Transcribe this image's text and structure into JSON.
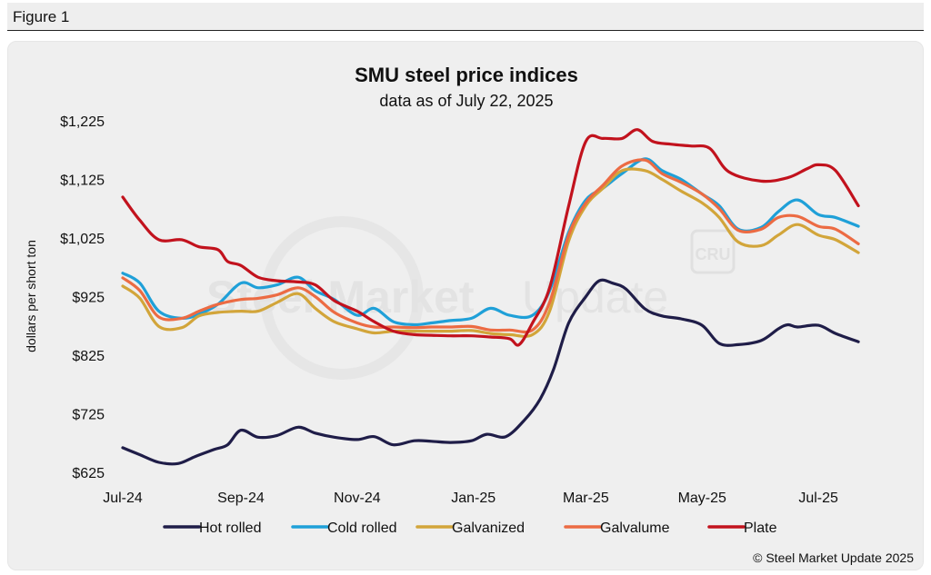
{
  "figure_label": "Figure 1",
  "credit": "© Steel Market Update 2025",
  "watermark": {
    "text_bold": "Steel Market",
    "text_light": "Update",
    "badge": "CRU"
  },
  "chart_data": {
    "type": "line",
    "title": "SMU steel price indices",
    "subtitle": "data as of July 22, 2025",
    "xlabel": "",
    "ylabel": "dollars per short ton",
    "ylim": [
      625,
      1225
    ],
    "yticks": [
      625,
      725,
      825,
      925,
      1025,
      1125,
      1225
    ],
    "ytick_labels": [
      "$625",
      "$725",
      "$825",
      "$925",
      "$1,025",
      "$1,125",
      "$1,225"
    ],
    "xlim": [
      "2024-07-01",
      "2025-07-31"
    ],
    "xticks": [
      "2024-07-01",
      "2024-09-01",
      "2024-11-01",
      "2025-01-01",
      "2025-03-01",
      "2025-05-01",
      "2025-07-01"
    ],
    "xtick_labels": [
      "Jul-24",
      "Sep-24",
      "Nov-24",
      "Jan-25",
      "Mar-25",
      "May-25",
      "Jul-25"
    ],
    "grid": false,
    "legend_position": "bottom",
    "series": [
      {
        "name": "Hot rolled",
        "color": "#1f1d48",
        "points": [
          [
            "2024-07-01",
            667
          ],
          [
            "2024-07-10",
            655
          ],
          [
            "2024-07-20",
            642
          ],
          [
            "2024-07-30",
            640
          ],
          [
            "2024-08-08",
            652
          ],
          [
            "2024-08-18",
            664
          ],
          [
            "2024-08-25",
            672
          ],
          [
            "2024-09-01",
            697
          ],
          [
            "2024-09-10",
            685
          ],
          [
            "2024-09-20",
            688
          ],
          [
            "2024-10-01",
            702
          ],
          [
            "2024-10-10",
            692
          ],
          [
            "2024-10-20",
            685
          ],
          [
            "2024-11-01",
            681
          ],
          [
            "2024-11-10",
            686
          ],
          [
            "2024-11-20",
            672
          ],
          [
            "2024-12-01",
            679
          ],
          [
            "2024-12-10",
            678
          ],
          [
            "2024-12-20",
            676
          ],
          [
            "2024-12-31",
            679
          ],
          [
            "2025-01-08",
            690
          ],
          [
            "2025-01-18",
            686
          ],
          [
            "2025-01-28",
            715
          ],
          [
            "2025-02-05",
            750
          ],
          [
            "2025-02-12",
            800
          ],
          [
            "2025-02-20",
            880
          ],
          [
            "2025-03-01",
            925
          ],
          [
            "2025-03-08",
            952
          ],
          [
            "2025-03-15",
            948
          ],
          [
            "2025-03-22",
            938
          ],
          [
            "2025-04-01",
            904
          ],
          [
            "2025-04-10",
            892
          ],
          [
            "2025-04-20",
            887
          ],
          [
            "2025-05-01",
            876
          ],
          [
            "2025-05-10",
            845
          ],
          [
            "2025-05-20",
            843
          ],
          [
            "2025-06-01",
            850
          ],
          [
            "2025-06-10",
            870
          ],
          [
            "2025-06-15",
            877
          ],
          [
            "2025-06-20",
            873
          ],
          [
            "2025-07-01",
            876
          ],
          [
            "2025-07-10",
            862
          ],
          [
            "2025-07-22",
            848
          ]
        ]
      },
      {
        "name": "Cold rolled",
        "color": "#1fa0d8",
        "points": [
          [
            "2024-07-01",
            965
          ],
          [
            "2024-07-10",
            948
          ],
          [
            "2024-07-20",
            900
          ],
          [
            "2024-08-01",
            888
          ],
          [
            "2024-08-10",
            895
          ],
          [
            "2024-08-20",
            912
          ],
          [
            "2024-09-01",
            948
          ],
          [
            "2024-09-10",
            940
          ],
          [
            "2024-09-20",
            945
          ],
          [
            "2024-10-01",
            958
          ],
          [
            "2024-10-10",
            935
          ],
          [
            "2024-10-20",
            920
          ],
          [
            "2024-11-01",
            893
          ],
          [
            "2024-11-10",
            905
          ],
          [
            "2024-11-20",
            882
          ],
          [
            "2024-12-01",
            877
          ],
          [
            "2024-12-10",
            880
          ],
          [
            "2024-12-20",
            884
          ],
          [
            "2024-12-31",
            888
          ],
          [
            "2025-01-10",
            905
          ],
          [
            "2025-01-20",
            893
          ],
          [
            "2025-02-01",
            893
          ],
          [
            "2025-02-10",
            935
          ],
          [
            "2025-02-20",
            1035
          ],
          [
            "2025-03-01",
            1090
          ],
          [
            "2025-03-10",
            1110
          ],
          [
            "2025-03-20",
            1135
          ],
          [
            "2025-04-01",
            1160
          ],
          [
            "2025-04-10",
            1140
          ],
          [
            "2025-04-20",
            1125
          ],
          [
            "2025-05-01",
            1100
          ],
          [
            "2025-05-10",
            1080
          ],
          [
            "2025-05-20",
            1040
          ],
          [
            "2025-06-01",
            1043
          ],
          [
            "2025-06-10",
            1070
          ],
          [
            "2025-06-20",
            1090
          ],
          [
            "2025-07-01",
            1065
          ],
          [
            "2025-07-10",
            1060
          ],
          [
            "2025-07-22",
            1045
          ]
        ]
      },
      {
        "name": "Galvanized",
        "color": "#d2a53a",
        "points": [
          [
            "2024-07-01",
            943
          ],
          [
            "2024-07-10",
            922
          ],
          [
            "2024-07-20",
            874
          ],
          [
            "2024-08-01",
            872
          ],
          [
            "2024-08-10",
            892
          ],
          [
            "2024-08-20",
            898
          ],
          [
            "2024-09-01",
            900
          ],
          [
            "2024-09-10",
            900
          ],
          [
            "2024-09-20",
            915
          ],
          [
            "2024-10-01",
            930
          ],
          [
            "2024-10-10",
            905
          ],
          [
            "2024-10-20",
            882
          ],
          [
            "2024-11-01",
            870
          ],
          [
            "2024-11-10",
            863
          ],
          [
            "2024-11-20",
            866
          ],
          [
            "2024-12-01",
            866
          ],
          [
            "2024-12-10",
            866
          ],
          [
            "2024-12-20",
            866
          ],
          [
            "2024-12-31",
            867
          ],
          [
            "2025-01-10",
            862
          ],
          [
            "2025-01-20",
            860
          ],
          [
            "2025-02-01",
            860
          ],
          [
            "2025-02-10",
            900
          ],
          [
            "2025-02-20",
            1020
          ],
          [
            "2025-03-01",
            1080
          ],
          [
            "2025-03-10",
            1110
          ],
          [
            "2025-03-20",
            1140
          ],
          [
            "2025-04-01",
            1140
          ],
          [
            "2025-04-10",
            1125
          ],
          [
            "2025-04-20",
            1105
          ],
          [
            "2025-05-01",
            1085
          ],
          [
            "2025-05-10",
            1060
          ],
          [
            "2025-05-20",
            1018
          ],
          [
            "2025-06-01",
            1012
          ],
          [
            "2025-06-10",
            1030
          ],
          [
            "2025-06-20",
            1048
          ],
          [
            "2025-07-01",
            1030
          ],
          [
            "2025-07-10",
            1022
          ],
          [
            "2025-07-22",
            1000
          ]
        ]
      },
      {
        "name": "Galvalume",
        "color": "#ec6b43",
        "points": [
          [
            "2024-07-01",
            957
          ],
          [
            "2024-07-10",
            935
          ],
          [
            "2024-07-20",
            890
          ],
          [
            "2024-08-01",
            888
          ],
          [
            "2024-08-10",
            900
          ],
          [
            "2024-08-20",
            912
          ],
          [
            "2024-09-01",
            920
          ],
          [
            "2024-09-10",
            922
          ],
          [
            "2024-09-20",
            928
          ],
          [
            "2024-10-01",
            940
          ],
          [
            "2024-10-10",
            925
          ],
          [
            "2024-10-20",
            898
          ],
          [
            "2024-11-01",
            880
          ],
          [
            "2024-11-10",
            873
          ],
          [
            "2024-11-20",
            873
          ],
          [
            "2024-12-01",
            872
          ],
          [
            "2024-12-10",
            873
          ],
          [
            "2024-12-20",
            873
          ],
          [
            "2024-12-31",
            874
          ],
          [
            "2025-01-10",
            868
          ],
          [
            "2025-01-20",
            868
          ],
          [
            "2025-02-01",
            868
          ],
          [
            "2025-02-10",
            915
          ],
          [
            "2025-02-20",
            1030
          ],
          [
            "2025-03-01",
            1085
          ],
          [
            "2025-03-10",
            1115
          ],
          [
            "2025-03-20",
            1148
          ],
          [
            "2025-04-01",
            1158
          ],
          [
            "2025-04-10",
            1135
          ],
          [
            "2025-04-20",
            1120
          ],
          [
            "2025-05-01",
            1100
          ],
          [
            "2025-05-10",
            1075
          ],
          [
            "2025-05-20",
            1038
          ],
          [
            "2025-06-01",
            1040
          ],
          [
            "2025-06-10",
            1060
          ],
          [
            "2025-06-20",
            1062
          ],
          [
            "2025-07-01",
            1045
          ],
          [
            "2025-07-10",
            1040
          ],
          [
            "2025-07-22",
            1015
          ]
        ]
      },
      {
        "name": "Plate",
        "color": "#c2121d",
        "points": [
          [
            "2024-07-01",
            1095
          ],
          [
            "2024-07-10",
            1055
          ],
          [
            "2024-07-20",
            1022
          ],
          [
            "2024-08-01",
            1022
          ],
          [
            "2024-08-10",
            1010
          ],
          [
            "2024-08-20",
            1005
          ],
          [
            "2024-08-25",
            985
          ],
          [
            "2024-09-01",
            978
          ],
          [
            "2024-09-10",
            958
          ],
          [
            "2024-09-20",
            952
          ],
          [
            "2024-10-01",
            950
          ],
          [
            "2024-10-10",
            945
          ],
          [
            "2024-10-20",
            918
          ],
          [
            "2024-11-01",
            900
          ],
          [
            "2024-11-10",
            882
          ],
          [
            "2024-11-20",
            866
          ],
          [
            "2024-12-01",
            860
          ],
          [
            "2024-12-10",
            859
          ],
          [
            "2024-12-20",
            858
          ],
          [
            "2024-12-31",
            858
          ],
          [
            "2025-01-10",
            856
          ],
          [
            "2025-01-20",
            853
          ],
          [
            "2025-01-25",
            843
          ],
          [
            "2025-02-01",
            880
          ],
          [
            "2025-02-10",
            940
          ],
          [
            "2025-02-20",
            1080
          ],
          [
            "2025-03-01",
            1190
          ],
          [
            "2025-03-10",
            1195
          ],
          [
            "2025-03-20",
            1195
          ],
          [
            "2025-03-28",
            1210
          ],
          [
            "2025-04-05",
            1190
          ],
          [
            "2025-04-15",
            1185
          ],
          [
            "2025-04-25",
            1182
          ],
          [
            "2025-05-05",
            1178
          ],
          [
            "2025-05-15",
            1138
          ],
          [
            "2025-06-01",
            1122
          ],
          [
            "2025-06-15",
            1128
          ],
          [
            "2025-06-25",
            1143
          ],
          [
            "2025-07-01",
            1150
          ],
          [
            "2025-07-10",
            1140
          ],
          [
            "2025-07-22",
            1080
          ]
        ]
      }
    ]
  }
}
